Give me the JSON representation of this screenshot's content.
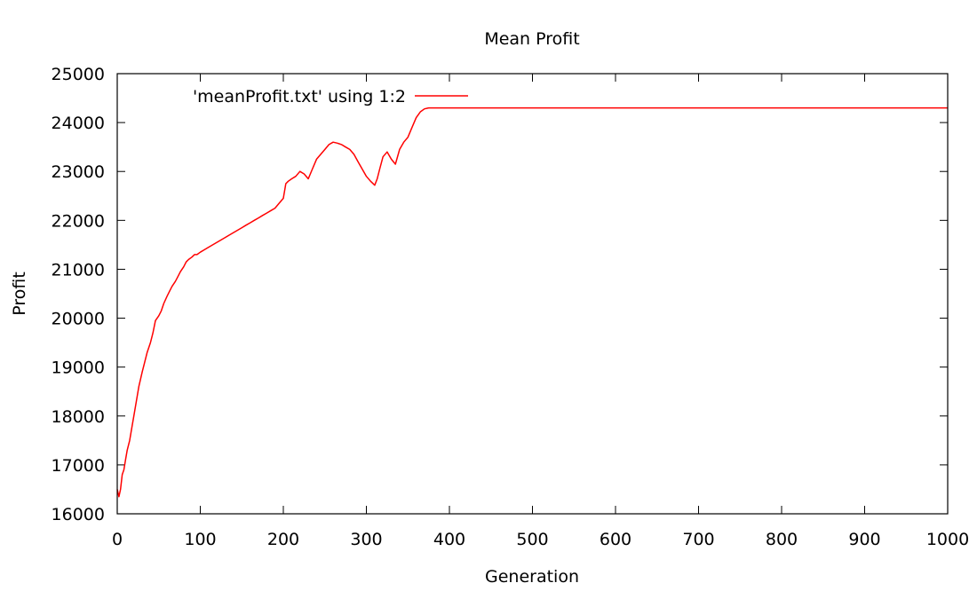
{
  "chart_data": {
    "type": "line",
    "title": "Mean Profit",
    "xlabel": "Generation",
    "ylabel": "Profit",
    "xlim": [
      0,
      1000
    ],
    "ylim": [
      16000,
      25000
    ],
    "xticks": [
      0,
      100,
      200,
      300,
      400,
      500,
      600,
      700,
      800,
      900,
      1000
    ],
    "yticks": [
      16000,
      17000,
      18000,
      19000,
      20000,
      21000,
      22000,
      23000,
      24000,
      25000
    ],
    "grid": false,
    "legend_position": "top-left",
    "series": [
      {
        "name": "'meanProfit.txt' using 1:2",
        "color": "#ff0000",
        "x": [
          0,
          2,
          4,
          6,
          8,
          10,
          12,
          15,
          18,
          20,
          23,
          26,
          30,
          33,
          36,
          40,
          43,
          46,
          50,
          53,
          56,
          60,
          63,
          66,
          70,
          73,
          76,
          80,
          83,
          86,
          90,
          93,
          96,
          100,
          105,
          110,
          115,
          120,
          125,
          130,
          135,
          140,
          145,
          150,
          155,
          160,
          165,
          170,
          175,
          180,
          185,
          190,
          195,
          200,
          203,
          206,
          210,
          215,
          220,
          225,
          230,
          235,
          240,
          245,
          250,
          255,
          260,
          265,
          270,
          275,
          280,
          285,
          290,
          295,
          300,
          305,
          310,
          313,
          316,
          320,
          325,
          330,
          335,
          340,
          345,
          350,
          355,
          360,
          365,
          370,
          375,
          380,
          390,
          400,
          450,
          500,
          550,
          600,
          650,
          700,
          750,
          800,
          850,
          900,
          950,
          1000
        ],
        "y": [
          16500,
          16350,
          16500,
          16800,
          16900,
          17100,
          17300,
          17500,
          17800,
          18000,
          18300,
          18600,
          18900,
          19100,
          19300,
          19500,
          19700,
          19950,
          20050,
          20150,
          20300,
          20450,
          20550,
          20650,
          20750,
          20850,
          20950,
          21050,
          21150,
          21200,
          21250,
          21300,
          21300,
          21350,
          21400,
          21450,
          21500,
          21550,
          21600,
          21650,
          21700,
          21750,
          21800,
          21850,
          21900,
          21950,
          22000,
          22050,
          22100,
          22150,
          22200,
          22250,
          22350,
          22450,
          22750,
          22800,
          22850,
          22900,
          23000,
          22950,
          22850,
          23050,
          23250,
          23350,
          23450,
          23550,
          23600,
          23580,
          23550,
          23500,
          23450,
          23350,
          23200,
          23050,
          22900,
          22800,
          22720,
          22850,
          23050,
          23300,
          23400,
          23250,
          23150,
          23450,
          23600,
          23700,
          23900,
          24100,
          24220,
          24280,
          24300,
          24300,
          24300,
          24300,
          24300,
          24300,
          24300,
          24300,
          24300,
          24300,
          24300,
          24300,
          24300,
          24300,
          24300,
          24300
        ]
      }
    ]
  }
}
